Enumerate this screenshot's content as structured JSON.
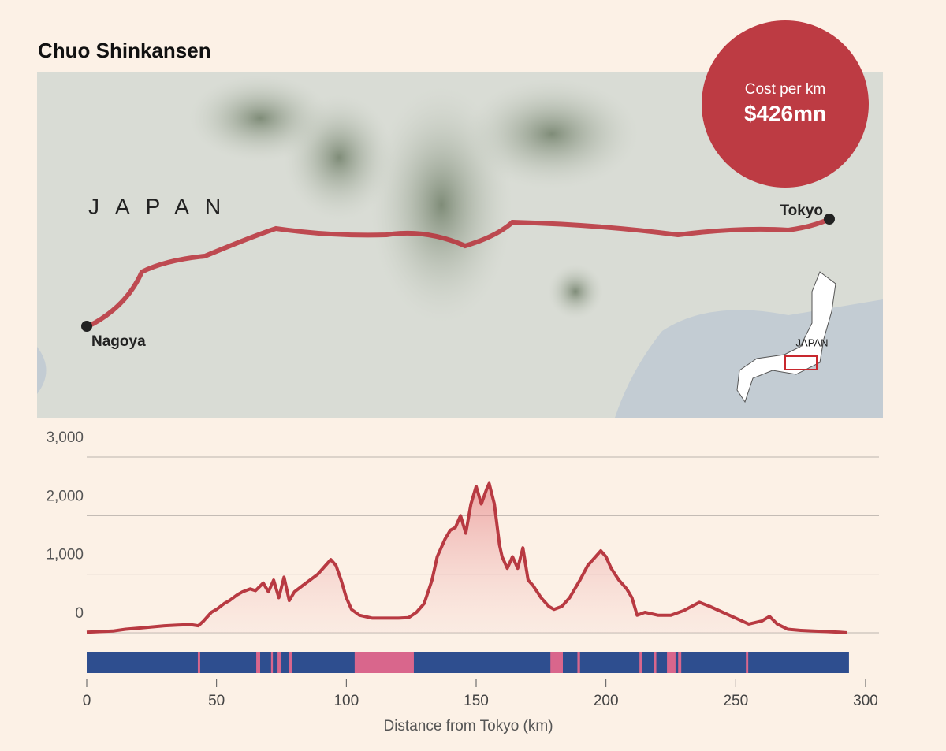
{
  "header": {
    "title": "Chuo Shinkansen"
  },
  "map": {
    "region_label": "JAPAN",
    "cities": [
      "Tokyo",
      "Nagoya"
    ],
    "inset_label": "JAPAN",
    "badge": {
      "label": "Cost per km",
      "value": "$426mn"
    }
  },
  "chart_data": {
    "type": "area",
    "xlabel": "Distance from Tokyo (km)",
    "x": [
      0,
      5,
      10,
      15,
      20,
      25,
      30,
      35,
      40,
      43,
      45,
      48,
      50,
      53,
      55,
      58,
      60,
      63,
      65,
      68,
      70,
      72,
      74,
      76,
      78,
      80,
      83,
      86,
      89,
      92,
      94,
      96,
      98,
      100,
      102,
      105,
      110,
      115,
      120,
      124,
      127,
      130,
      133,
      135,
      138,
      140,
      142,
      144,
      146,
      148,
      150,
      152,
      154,
      155,
      157,
      159,
      160,
      162,
      164,
      166,
      168,
      170,
      172,
      175,
      178,
      180,
      183,
      186,
      190,
      193,
      196,
      198,
      200,
      202,
      205,
      208,
      210,
      212,
      215,
      220,
      225,
      230,
      233,
      236,
      240,
      245,
      250,
      255,
      260,
      263,
      266,
      270,
      275,
      280,
      285,
      290,
      293
    ],
    "series": [
      {
        "color": "#b83a42",
        "values": [
          10,
          20,
          30,
          60,
          80,
          100,
          120,
          130,
          140,
          120,
          200,
          350,
          400,
          500,
          550,
          650,
          700,
          750,
          720,
          850,
          700,
          900,
          600,
          950,
          550,
          700,
          800,
          900,
          1000,
          1150,
          1250,
          1150,
          900,
          600,
          400,
          300,
          250,
          250,
          250,
          260,
          350,
          500,
          900,
          1300,
          1600,
          1750,
          1800,
          2000,
          1700,
          2200,
          2500,
          2200,
          2450,
          2550,
          2200,
          1500,
          1300,
          1100,
          1300,
          1100,
          1450,
          900,
          800,
          600,
          450,
          400,
          450,
          600,
          900,
          1150,
          1300,
          1400,
          1300,
          1100,
          900,
          750,
          600,
          300,
          350,
          300,
          300,
          380,
          450,
          520,
          450,
          350,
          250,
          150,
          200,
          280,
          150,
          60,
          40,
          30,
          20,
          10,
          0
        ]
      }
    ],
    "xlim": [
      0,
      300
    ],
    "xticks": [
      0,
      50,
      100,
      150,
      200,
      250,
      300
    ],
    "ylim": [
      0,
      3000
    ],
    "yticks": [
      0,
      {
        "value": 1000,
        "label": "1,000"
      },
      {
        "value": 2000,
        "label": "2,000"
      },
      {
        "value": 3000,
        "label": "3,000"
      }
    ],
    "grid": true,
    "strip": {
      "end": 293.6,
      "color": "#2e4e8f",
      "segment_color": "#d9668c",
      "segments": [
        [
          42.8,
          43.7
        ],
        [
          65.3,
          66.8
        ],
        [
          71,
          71.7
        ],
        [
          73.5,
          74.7
        ],
        [
          78,
          79
        ],
        [
          103.2,
          126
        ],
        [
          178.6,
          183.4
        ],
        [
          189,
          190
        ],
        [
          212.9,
          213.8
        ],
        [
          218.4,
          219.4
        ],
        [
          223.5,
          226.8
        ],
        [
          227.8,
          229
        ],
        [
          253.9,
          254.8
        ]
      ]
    }
  }
}
